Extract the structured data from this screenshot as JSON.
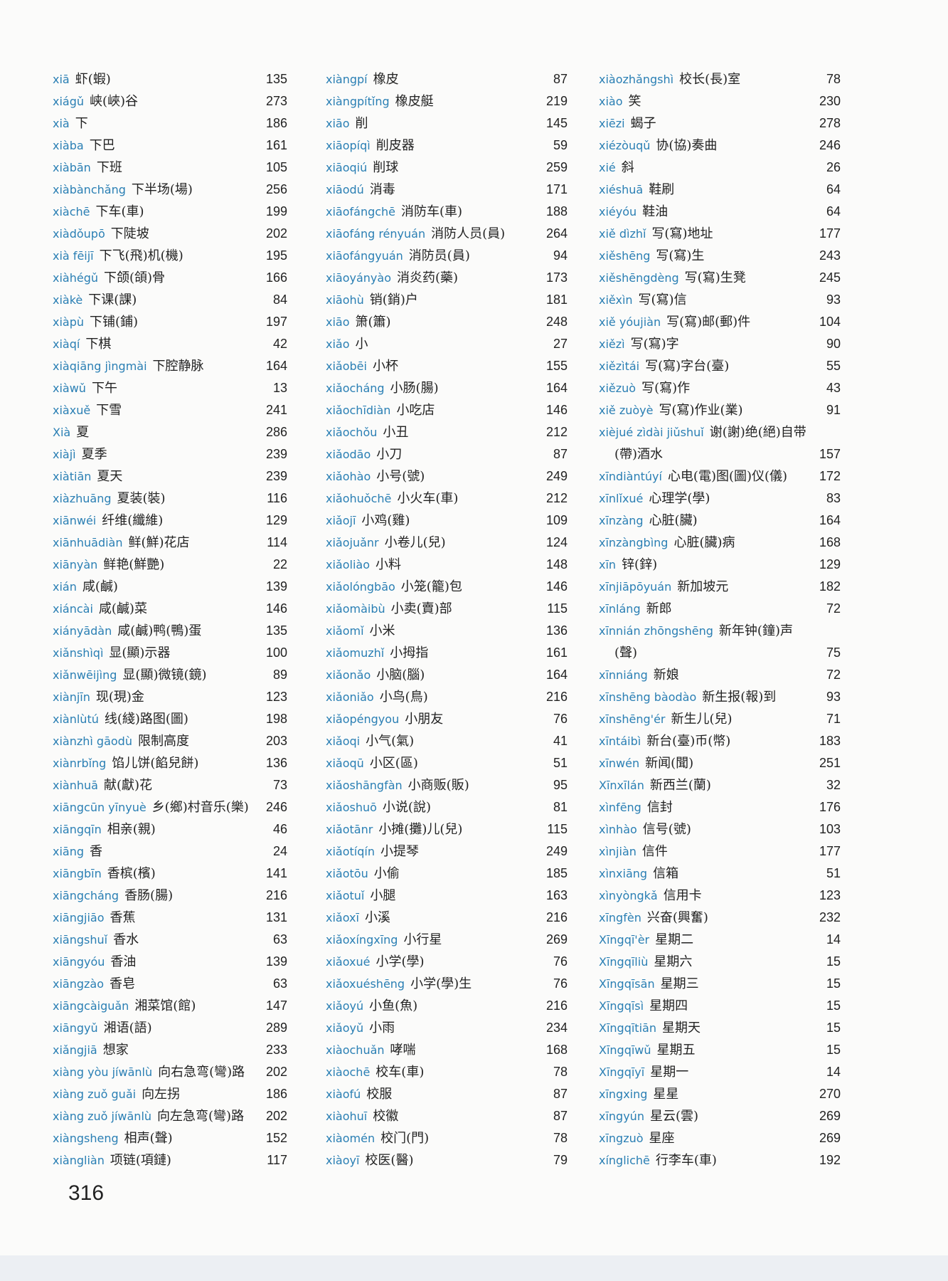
{
  "page_number": "316",
  "columns": [
    [
      {
        "py": "xiā",
        "zh": "虾(蝦)",
        "num": "135"
      },
      {
        "py": "xiágǔ",
        "zh": "峡(峽)谷",
        "num": "273"
      },
      {
        "py": "xià",
        "zh": "下",
        "num": "186"
      },
      {
        "py": "xiàba",
        "zh": "下巴",
        "num": "161"
      },
      {
        "py": "xiàbān",
        "zh": "下班",
        "num": "105"
      },
      {
        "py": "xiàbànchǎng",
        "zh": "下半场(場)",
        "num": "256"
      },
      {
        "py": "xiàchē",
        "zh": "下车(車)",
        "num": "199"
      },
      {
        "py": "xiàdǒupō",
        "zh": "下陡坡",
        "num": "202"
      },
      {
        "py": "xià fēijī",
        "zh": "下飞(飛)机(機)",
        "num": "195"
      },
      {
        "py": "xiàhégǔ",
        "zh": "下颌(頜)骨",
        "num": "166"
      },
      {
        "py": "xiàkè",
        "zh": "下课(課)",
        "num": "84"
      },
      {
        "py": "xiàpù",
        "zh": "下铺(鋪)",
        "num": "197"
      },
      {
        "py": "xiàqí",
        "zh": "下棋",
        "num": "42"
      },
      {
        "py": "xiàqiāng jìngmài",
        "zh": "下腔静脉",
        "num": "164"
      },
      {
        "py": "xiàwǔ",
        "zh": "下午",
        "num": "13"
      },
      {
        "py": "xiàxuě",
        "zh": "下雪",
        "num": "241"
      },
      {
        "py": "Xià",
        "zh": "夏",
        "num": "286"
      },
      {
        "py": "xiàjì",
        "zh": "夏季",
        "num": "239"
      },
      {
        "py": "xiàtiān",
        "zh": "夏天",
        "num": "239"
      },
      {
        "py": "xiàzhuāng",
        "zh": "夏装(裝)",
        "num": "116"
      },
      {
        "py": "xiānwéi",
        "zh": "纤维(纖維)",
        "num": "129"
      },
      {
        "py": "xiānhuādiàn",
        "zh": "鲜(鮮)花店",
        "num": "114"
      },
      {
        "py": "xiānyàn",
        "zh": "鲜艳(鮮艷)",
        "num": "22"
      },
      {
        "py": "xián",
        "zh": "咸(鹹)",
        "num": "139"
      },
      {
        "py": "xiáncài",
        "zh": "咸(鹹)菜",
        "num": "146"
      },
      {
        "py": "xiányādàn",
        "zh": "咸(鹹)鸭(鴨)蛋",
        "num": "135"
      },
      {
        "py": "xiǎnshìqì",
        "zh": "显(顯)示器",
        "num": "100"
      },
      {
        "py": "xiǎnwēijìng",
        "zh": "显(顯)微镜(鏡)",
        "num": "89"
      },
      {
        "py": "xiànjīn",
        "zh": "现(現)金",
        "num": "123"
      },
      {
        "py": "xiànlùtú",
        "zh": "线(綫)路图(圖)",
        "num": "198"
      },
      {
        "py": "xiànzhì gāodù",
        "zh": "限制高度",
        "num": "203"
      },
      {
        "py": "xiànrbǐng",
        "zh": "馅儿饼(餡兒餅)",
        "num": "136"
      },
      {
        "py": "xiànhuā",
        "zh": "献(獻)花",
        "num": "73"
      },
      {
        "py": "xiāngcūn yīnyuè",
        "zh": "乡(鄉)村音乐(樂)",
        "num": "246"
      },
      {
        "py": "xiāngqīn",
        "zh": "相亲(親)",
        "num": "46"
      },
      {
        "py": "xiāng",
        "zh": "香",
        "num": "24"
      },
      {
        "py": "xiāngbīn",
        "zh": "香槟(檳)",
        "num": "141"
      },
      {
        "py": "xiāngcháng",
        "zh": "香肠(腸)",
        "num": "216"
      },
      {
        "py": "xiāngjiāo",
        "zh": "香蕉",
        "num": "131"
      },
      {
        "py": "xiāngshuǐ",
        "zh": "香水",
        "num": "63"
      },
      {
        "py": "xiāngyóu",
        "zh": "香油",
        "num": "139"
      },
      {
        "py": "xiāngzào",
        "zh": "香皂",
        "num": "63"
      },
      {
        "py": "xiāngcàiguǎn",
        "zh": "湘菜馆(館)",
        "num": "147"
      },
      {
        "py": "xiāngyǔ",
        "zh": "湘语(語)",
        "num": "289"
      },
      {
        "py": "xiǎngjiā",
        "zh": "想家",
        "num": "233"
      },
      {
        "py": "xiàng yòu jíwānlù",
        "zh": "向右急弯(彎)路",
        "num": "202"
      },
      {
        "py": "xiàng zuǒ guǎi",
        "zh": "向左拐",
        "num": "186"
      },
      {
        "py": "xiàng zuǒ jíwānlù",
        "zh": "向左急弯(彎)路",
        "num": "202"
      },
      {
        "py": "xiàngsheng",
        "zh": "相声(聲)",
        "num": "152"
      },
      {
        "py": "xiàngliàn",
        "zh": "项链(項鏈)",
        "num": "117"
      }
    ],
    [
      {
        "py": "xiàngpí",
        "zh": "橡皮",
        "num": "87"
      },
      {
        "py": "xiàngpítǐng",
        "zh": "橡皮艇",
        "num": "219"
      },
      {
        "py": "xiāo",
        "zh": "削",
        "num": "145"
      },
      {
        "py": "xiāopíqì",
        "zh": "削皮器",
        "num": "59"
      },
      {
        "py": "xiāoqiú",
        "zh": "削球",
        "num": "259"
      },
      {
        "py": "xiāodú",
        "zh": "消毒",
        "num": "171"
      },
      {
        "py": "xiāofángchē",
        "zh": "消防车(車)",
        "num": "188"
      },
      {
        "py": "xiāofáng rényuán",
        "zh": "消防人员(員)",
        "num": "264"
      },
      {
        "py": "xiāofángyuán",
        "zh": "消防员(員)",
        "num": "94"
      },
      {
        "py": "xiāoyányào",
        "zh": "消炎药(藥)",
        "num": "173"
      },
      {
        "py": "xiāohù",
        "zh": "销(銷)户",
        "num": "181"
      },
      {
        "py": "xiāo",
        "zh": "箫(簫)",
        "num": "248"
      },
      {
        "py": "xiǎo",
        "zh": "小",
        "num": "27"
      },
      {
        "py": "xiǎobēi",
        "zh": "小杯",
        "num": "155"
      },
      {
        "py": "xiǎocháng",
        "zh": "小肠(腸)",
        "num": "164"
      },
      {
        "py": "xiǎochīdiàn",
        "zh": "小吃店",
        "num": "146"
      },
      {
        "py": "xiǎochǒu",
        "zh": "小丑",
        "num": "212"
      },
      {
        "py": "xiǎodāo",
        "zh": "小刀",
        "num": "87"
      },
      {
        "py": "xiǎohào",
        "zh": "小号(號)",
        "num": "249"
      },
      {
        "py": "xiǎohuǒchē",
        "zh": "小火车(車)",
        "num": "212"
      },
      {
        "py": "xiǎojī",
        "zh": "小鸡(雞)",
        "num": "109"
      },
      {
        "py": "xiǎojuǎnr",
        "zh": "小卷儿(兒)",
        "num": "124"
      },
      {
        "py": "xiǎoliào",
        "zh": "小料",
        "num": "148"
      },
      {
        "py": "xiǎolóngbāo",
        "zh": "小笼(籠)包",
        "num": "146"
      },
      {
        "py": "xiǎomàibù",
        "zh": "小卖(賣)部",
        "num": "115"
      },
      {
        "py": "xiǎomǐ",
        "zh": "小米",
        "num": "136"
      },
      {
        "py": "xiǎomuzhǐ",
        "zh": "小拇指",
        "num": "161"
      },
      {
        "py": "xiǎonǎo",
        "zh": "小脑(腦)",
        "num": "164"
      },
      {
        "py": "xiǎoniǎo",
        "zh": "小鸟(鳥)",
        "num": "216"
      },
      {
        "py": "xiǎopéngyou",
        "zh": "小朋友",
        "num": "76"
      },
      {
        "py": "xiǎoqi",
        "zh": "小气(氣)",
        "num": "41"
      },
      {
        "py": "xiǎoqū",
        "zh": "小区(區)",
        "num": "51"
      },
      {
        "py": "xiǎoshāngfàn",
        "zh": "小商贩(販)",
        "num": "95"
      },
      {
        "py": "xiǎoshuō",
        "zh": "小说(說)",
        "num": "81"
      },
      {
        "py": "xiǎotānr",
        "zh": "小摊(攤)儿(兒)",
        "num": "115"
      },
      {
        "py": "xiǎotíqín",
        "zh": "小提琴",
        "num": "249"
      },
      {
        "py": "xiǎotōu",
        "zh": "小偷",
        "num": "185"
      },
      {
        "py": "xiǎotuǐ",
        "zh": "小腿",
        "num": "163"
      },
      {
        "py": "xiǎoxī",
        "zh": "小溪",
        "num": "216"
      },
      {
        "py": "xiǎoxíngxīng",
        "zh": "小行星",
        "num": "269"
      },
      {
        "py": "xiǎoxué",
        "zh": "小学(學)",
        "num": "76"
      },
      {
        "py": "xiǎoxuéshēng",
        "zh": "小学(學)生",
        "num": "76"
      },
      {
        "py": "xiǎoyú",
        "zh": "小鱼(魚)",
        "num": "216"
      },
      {
        "py": "xiǎoyǔ",
        "zh": "小雨",
        "num": "234"
      },
      {
        "py": "xiàochuǎn",
        "zh": "哮喘",
        "num": "168"
      },
      {
        "py": "xiàochē",
        "zh": "校车(車)",
        "num": "78"
      },
      {
        "py": "xiàofú",
        "zh": "校服",
        "num": "87"
      },
      {
        "py": "xiàohuī",
        "zh": "校徽",
        "num": "87"
      },
      {
        "py": "xiàomén",
        "zh": "校门(門)",
        "num": "78"
      },
      {
        "py": "xiàoyī",
        "zh": "校医(醫)",
        "num": "79"
      }
    ],
    [
      {
        "py": "xiàozhǎngshì",
        "zh": "校长(長)室",
        "num": "78"
      },
      {
        "py": "xiào",
        "zh": "笑",
        "num": "230"
      },
      {
        "py": "xiēzi",
        "zh": "蝎子",
        "num": "278"
      },
      {
        "py": "xiézòuqǔ",
        "zh": "协(協)奏曲",
        "num": "246"
      },
      {
        "py": "xié",
        "zh": "斜",
        "num": "26"
      },
      {
        "py": "xiéshuā",
        "zh": "鞋刷",
        "num": "64"
      },
      {
        "py": "xiéyóu",
        "zh": "鞋油",
        "num": "64"
      },
      {
        "py": "xiě dìzhǐ",
        "zh": "写(寫)地址",
        "num": "177"
      },
      {
        "py": "xiěshēng",
        "zh": "写(寫)生",
        "num": "243"
      },
      {
        "py": "xiěshēngdèng",
        "zh": "写(寫)生凳",
        "num": "245"
      },
      {
        "py": "xiěxìn",
        "zh": "写(寫)信",
        "num": "93"
      },
      {
        "py": "xiě yóujiàn",
        "zh": "写(寫)邮(郵)件",
        "num": "104"
      },
      {
        "py": "xiězì",
        "zh": "写(寫)字",
        "num": "90"
      },
      {
        "py": "xiězìtái",
        "zh": "写(寫)字台(臺)",
        "num": "55"
      },
      {
        "py": "xiězuò",
        "zh": "写(寫)作",
        "num": "43"
      },
      {
        "py": "xiě zuòyè",
        "zh": "写(寫)作业(業)",
        "num": "91"
      },
      {
        "py": "xièjué zìdài jiǔshuǐ",
        "zh": "谢(謝)绝(絕)自带",
        "zh2": "(帶)酒水",
        "num": "157"
      },
      {
        "py": "xīndiàntúyí",
        "zh": "心电(電)图(圖)仪(儀)",
        "num": "172"
      },
      {
        "py": "xīnlǐxué",
        "zh": "心理学(學)",
        "num": "83"
      },
      {
        "py": "xīnzàng",
        "zh": "心脏(臟)",
        "num": "164"
      },
      {
        "py": "xīnzàngbìng",
        "zh": "心脏(臟)病",
        "num": "168"
      },
      {
        "py": "xīn",
        "zh": "锌(鋅)",
        "num": "129"
      },
      {
        "py": "xīnjiāpōyuán",
        "zh": "新加坡元",
        "num": "182"
      },
      {
        "py": "xīnláng",
        "zh": "新郎",
        "num": "72"
      },
      {
        "py": "xīnnián zhōngshēng",
        "zh": "新年钟(鐘)声",
        "zh2": "(聲)",
        "num": "75"
      },
      {
        "py": "xīnniáng",
        "zh": "新娘",
        "num": "72"
      },
      {
        "py": "xīnshēng bàodào",
        "zh": "新生报(報)到",
        "num": "93"
      },
      {
        "py": "xīnshēng'ér",
        "zh": "新生儿(兒)",
        "num": "71"
      },
      {
        "py": "xīntáibì",
        "zh": "新台(臺)币(幣)",
        "num": "183"
      },
      {
        "py": "xīnwén",
        "zh": "新闻(聞)",
        "num": "251"
      },
      {
        "py": "Xīnxīlán",
        "zh": "新西兰(蘭)",
        "num": "32"
      },
      {
        "py": "xìnfēng",
        "zh": "信封",
        "num": "176"
      },
      {
        "py": "xìnhào",
        "zh": "信号(號)",
        "num": "103"
      },
      {
        "py": "xìnjiàn",
        "zh": "信件",
        "num": "177"
      },
      {
        "py": "xìnxiāng",
        "zh": "信箱",
        "num": "51"
      },
      {
        "py": "xìnyòngkǎ",
        "zh": "信用卡",
        "num": "123"
      },
      {
        "py": "xīngfèn",
        "zh": "兴奋(興奮)",
        "num": "232"
      },
      {
        "py": "Xīngqī'èr",
        "zh": "星期二",
        "num": "14"
      },
      {
        "py": "Xīngqīliù",
        "zh": "星期六",
        "num": "15"
      },
      {
        "py": "Xīngqīsān",
        "zh": "星期三",
        "num": "15"
      },
      {
        "py": "Xīngqīsì",
        "zh": "星期四",
        "num": "15"
      },
      {
        "py": "Xīngqītiān",
        "zh": "星期天",
        "num": "15"
      },
      {
        "py": "Xīngqīwǔ",
        "zh": "星期五",
        "num": "15"
      },
      {
        "py": "Xīngqīyī",
        "zh": "星期一",
        "num": "14"
      },
      {
        "py": "xīngxing",
        "zh": "星星",
        "num": "270"
      },
      {
        "py": "xīngyún",
        "zh": "星云(雲)",
        "num": "269"
      },
      {
        "py": "xīngzuò",
        "zh": "星座",
        "num": "269"
      },
      {
        "py": "xínglichē",
        "zh": "行李车(車)",
        "num": "192"
      }
    ]
  ]
}
